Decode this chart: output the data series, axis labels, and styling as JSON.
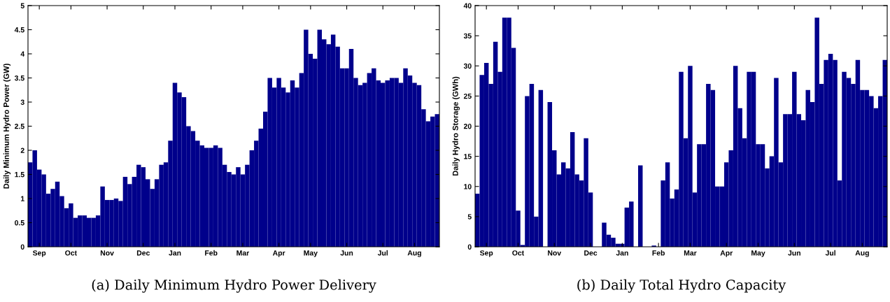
{
  "chart_data": [
    {
      "type": "bar",
      "title": "(a) Daily Minimum Hydro Power Delivery",
      "ylabel": "Daily Minimum Hydro Power (GW)",
      "color": "#00008b",
      "grid": false,
      "legend": false,
      "categories": [
        null,
        null,
        "Sep",
        null,
        null,
        null,
        null,
        null,
        null,
        "Oct",
        null,
        null,
        null,
        null,
        null,
        null,
        null,
        "Nov",
        null,
        null,
        null,
        null,
        null,
        null,
        null,
        "Dec",
        null,
        null,
        null,
        null,
        null,
        null,
        "Jan",
        null,
        null,
        null,
        null,
        null,
        null,
        null,
        "Feb",
        null,
        null,
        null,
        null,
        null,
        null,
        "Mar",
        null,
        null,
        null,
        null,
        null,
        null,
        null,
        "Apr",
        null,
        null,
        null,
        null,
        null,
        null,
        "May",
        null,
        null,
        null,
        null,
        null,
        null,
        null,
        "Jun",
        null,
        null,
        null,
        null,
        null,
        null,
        null,
        "Jul",
        null,
        null,
        null,
        null,
        null,
        null,
        "Aug",
        null,
        null,
        null,
        null,
        null
      ],
      "values": [
        1.75,
        2.0,
        1.6,
        1.5,
        1.1,
        1.2,
        1.35,
        1.05,
        0.8,
        0.9,
        0.6,
        0.65,
        0.65,
        0.6,
        0.6,
        0.65,
        1.25,
        0.97,
        0.97,
        1.0,
        0.95,
        1.45,
        1.3,
        1.45,
        1.7,
        1.65,
        1.4,
        1.2,
        1.4,
        1.7,
        1.75,
        2.2,
        3.4,
        3.2,
        3.1,
        2.5,
        2.4,
        2.2,
        2.1,
        2.05,
        2.05,
        2.1,
        2.05,
        1.7,
        1.55,
        1.5,
        1.65,
        1.5,
        1.7,
        2.0,
        2.2,
        2.45,
        2.8,
        3.5,
        3.3,
        3.5,
        3.3,
        3.2,
        3.45,
        3.3,
        3.6,
        4.5,
        4.0,
        3.9,
        4.5,
        4.3,
        4.2,
        4.4,
        4.15,
        3.7,
        3.7,
        4.1,
        3.5,
        3.35,
        3.4,
        3.6,
        3.7,
        3.45,
        3.4,
        3.45,
        3.5,
        3.5,
        3.4,
        3.7,
        3.55,
        3.4,
        3.35,
        2.85,
        2.6,
        2.7,
        2.75
      ],
      "ylim": [
        0,
        5
      ],
      "yticks": [
        0,
        0.5,
        1,
        1.5,
        2,
        2.5,
        3,
        3.5,
        4,
        4.5,
        5
      ]
    },
    {
      "type": "bar",
      "title": "(b) Daily Total Hydro Capacity",
      "ylabel": "Daily Hydro Storage (GWh)",
      "color": "#00008b",
      "grid": false,
      "legend": false,
      "categories": [
        null,
        null,
        "Sep",
        null,
        null,
        null,
        null,
        null,
        null,
        "Oct",
        null,
        null,
        null,
        null,
        null,
        null,
        null,
        "Nov",
        null,
        null,
        null,
        null,
        null,
        null,
        null,
        "Dec",
        null,
        null,
        null,
        null,
        null,
        null,
        "Jan",
        null,
        null,
        null,
        null,
        null,
        null,
        null,
        "Feb",
        null,
        null,
        null,
        null,
        null,
        null,
        "Mar",
        null,
        null,
        null,
        null,
        null,
        null,
        null,
        "Apr",
        null,
        null,
        null,
        null,
        null,
        null,
        "May",
        null,
        null,
        null,
        null,
        null,
        null,
        null,
        "Jun",
        null,
        null,
        null,
        null,
        null,
        null,
        null,
        "Jul",
        null,
        null,
        null,
        null,
        null,
        null,
        "Aug",
        null,
        null,
        null,
        null,
        null
      ],
      "values": [
        8.8,
        28.5,
        30.5,
        27,
        34,
        29,
        38,
        38,
        33,
        6,
        0.3,
        25,
        27,
        5,
        26,
        0,
        24,
        16,
        12,
        14,
        13,
        19,
        12,
        11,
        18,
        9,
        0,
        0,
        4,
        2,
        1.5,
        0.5,
        0.5,
        6.5,
        7.5,
        0,
        13.5,
        0,
        0,
        0.2,
        0,
        11,
        14,
        8,
        9.5,
        29,
        18,
        30,
        9,
        17,
        17,
        27,
        26,
        10,
        10,
        14,
        16,
        30,
        23,
        18,
        29,
        29,
        17,
        17,
        13,
        15,
        28,
        14,
        22,
        22,
        29,
        22,
        21,
        26,
        24,
        38,
        27,
        31,
        32,
        31,
        11,
        29,
        28,
        27,
        31,
        26,
        26,
        25,
        23,
        25,
        31
      ],
      "ylim": [
        0,
        40
      ],
      "yticks": [
        0,
        5,
        10,
        15,
        20,
        25,
        30,
        35,
        40
      ]
    }
  ]
}
